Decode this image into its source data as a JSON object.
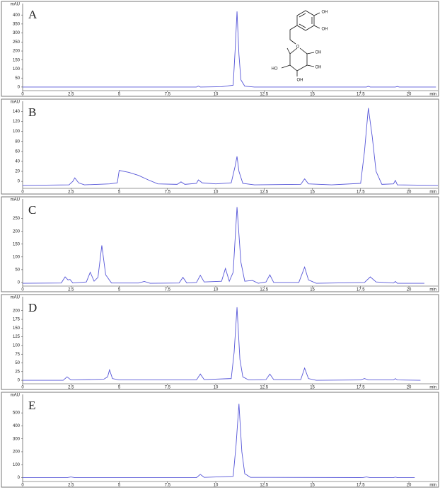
{
  "chart_data": [
    {
      "type": "line",
      "label": "A",
      "y_label": "mAU",
      "x_label": "min",
      "color": "#5656d8",
      "xlim": [
        0,
        21.5
      ],
      "ylim": [
        -20,
        440
      ],
      "xticks": [
        0,
        2.5,
        5,
        7.5,
        10,
        12.5,
        15,
        17.5,
        20
      ],
      "yticks": [
        0,
        50,
        100,
        150,
        200,
        250,
        300,
        350,
        400
      ],
      "structure_labels": [
        "OH",
        "OH",
        "O",
        "OH",
        "OH",
        "OH",
        "HO"
      ],
      "x": [
        0,
        2.5,
        9.0,
        9.1,
        9.2,
        10.3,
        10.9,
        11.0,
        11.1,
        11.2,
        11.3,
        11.5,
        12,
        17.8,
        17.9,
        18.0,
        19.3,
        19.4,
        19.5,
        21.4
      ],
      "values": [
        0,
        0,
        0,
        5,
        0,
        2,
        10,
        200,
        420,
        180,
        40,
        5,
        0,
        0,
        4,
        0,
        0,
        3,
        0,
        0
      ]
    },
    {
      "type": "line",
      "label": "B",
      "y_label": "mAU",
      "x_label": "min",
      "color": "#5656d8",
      "xlim": [
        0,
        21.5
      ],
      "ylim": [
        -14,
        152
      ],
      "xticks": [
        0,
        2.5,
        5,
        7.5,
        10,
        12.5,
        15,
        17.5,
        20
      ],
      "yticks": [
        0,
        20,
        40,
        60,
        80,
        100,
        120,
        140
      ],
      "x": [
        0,
        2.4,
        2.6,
        2.7,
        2.9,
        3.2,
        4.5,
        4.9,
        5.0,
        5.5,
        6.0,
        6.5,
        7.0,
        8.0,
        8.2,
        8.4,
        9.0,
        9.1,
        9.3,
        10.0,
        10.8,
        11.0,
        11.1,
        11.2,
        11.4,
        12.0,
        14.4,
        14.6,
        14.8,
        16.0,
        17.5,
        17.7,
        17.9,
        18.1,
        18.3,
        18.6,
        19.2,
        19.3,
        19.4,
        21.5
      ],
      "values": [
        -8,
        -7,
        0,
        7,
        -3,
        -7,
        -5,
        -3,
        22,
        18,
        12,
        3,
        -5,
        -6,
        -1,
        -6,
        -4,
        3,
        -3,
        -5,
        -3,
        30,
        50,
        20,
        -4,
        -7,
        -6,
        5,
        -5,
        -7,
        -4,
        60,
        147,
        90,
        20,
        -6,
        -5,
        2,
        -7,
        -8
      ]
    },
    {
      "type": "line",
      "label": "C",
      "y_label": "mAU",
      "x_label": "min",
      "color": "#5656d8",
      "xlim": [
        0,
        21.5
      ],
      "ylim": [
        -14,
        310
      ],
      "xticks": [
        0,
        2.5,
        5,
        7.5,
        10,
        12.5,
        15,
        17.5,
        20
      ],
      "yticks": [
        0,
        50,
        100,
        150,
        200,
        250
      ],
      "x": [
        0,
        2.0,
        2.2,
        2.35,
        2.45,
        2.6,
        3.3,
        3.5,
        3.7,
        3.9,
        4.1,
        4.3,
        4.6,
        6.0,
        6.3,
        6.6,
        8.1,
        8.3,
        8.5,
        9.0,
        9.2,
        9.4,
        10.3,
        10.5,
        10.7,
        10.9,
        11.1,
        11.3,
        11.5,
        11.9,
        12.2,
        12.6,
        12.8,
        13.0,
        14.3,
        14.6,
        14.8,
        15.2,
        17.7,
        18.0,
        18.3,
        19.2,
        19.3,
        19.4,
        20.8
      ],
      "values": [
        -3,
        -2,
        22,
        10,
        12,
        -2,
        2,
        40,
        5,
        20,
        145,
        30,
        -2,
        -2,
        4,
        -3,
        -2,
        20,
        -2,
        0,
        28,
        2,
        5,
        55,
        5,
        40,
        295,
        80,
        5,
        8,
        -3,
        2,
        30,
        0,
        0,
        60,
        10,
        -3,
        0,
        22,
        2,
        -2,
        4,
        -3,
        -3
      ]
    },
    {
      "type": "line",
      "label": "D",
      "y_label": "mAU",
      "x_label": "min",
      "color": "#5656d8",
      "xlim": [
        0,
        21.5
      ],
      "ylim": [
        -10,
        228
      ],
      "xticks": [
        0,
        2.5,
        5,
        7.5,
        10,
        12.5,
        15,
        17.5,
        20
      ],
      "yticks": [
        0,
        25,
        50,
        75,
        100,
        125,
        150,
        175,
        200
      ],
      "x": [
        0,
        2.1,
        2.3,
        2.5,
        4.2,
        4.4,
        4.5,
        4.65,
        5.0,
        9.0,
        9.2,
        9.4,
        10.8,
        10.95,
        11.1,
        11.25,
        11.4,
        11.7,
        12.6,
        12.8,
        13.0,
        14.4,
        14.6,
        14.8,
        15.2,
        17.5,
        17.7,
        17.9,
        19.2,
        19.3,
        19.4,
        20.6
      ],
      "values": [
        0,
        0,
        10,
        1,
        3,
        10,
        30,
        5,
        1,
        1,
        18,
        2,
        5,
        80,
        210,
        60,
        10,
        1,
        2,
        18,
        2,
        2,
        35,
        5,
        0,
        1,
        5,
        1,
        1,
        5,
        1,
        0
      ]
    },
    {
      "type": "line",
      "label": "E",
      "y_label": "mAU",
      "x_label": "min",
      "color": "#5656d8",
      "xlim": [
        0,
        21.5
      ],
      "ylim": [
        -30,
        610
      ],
      "xticks": [
        0,
        2.5,
        5,
        7.5,
        10,
        12.5,
        15,
        17.5,
        20
      ],
      "yticks": [
        0,
        100,
        200,
        300,
        400,
        500
      ],
      "x": [
        0,
        2.3,
        2.5,
        2.7,
        9.0,
        9.2,
        9.4,
        10.9,
        11.05,
        11.2,
        11.35,
        11.5,
        11.8,
        17.6,
        17.8,
        18.0,
        19.2,
        19.3,
        19.4,
        20.3
      ],
      "values": [
        0,
        0,
        5,
        0,
        0,
        25,
        2,
        10,
        250,
        570,
        200,
        30,
        2,
        0,
        5,
        0,
        0,
        4,
        0,
        0
      ]
    }
  ]
}
